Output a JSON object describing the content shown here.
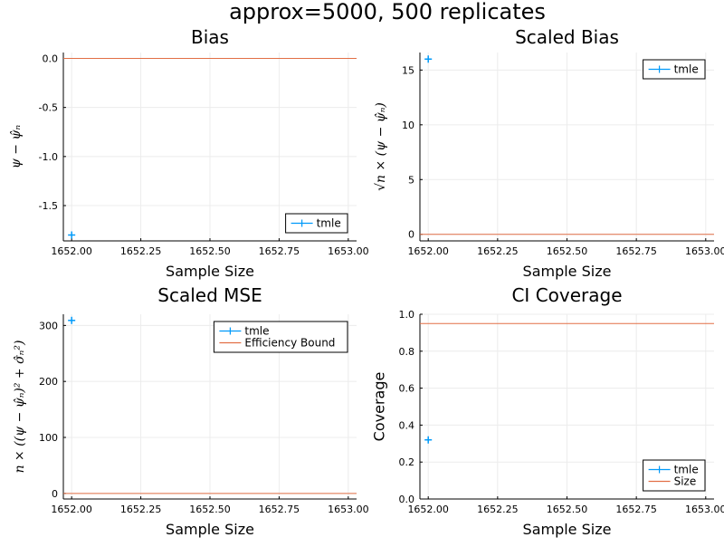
{
  "title": "approx=5000, 500 replicates",
  "colors": {
    "tmle": "#009AFA",
    "reference": "#E26F46"
  },
  "chart_data": [
    {
      "type": "scatter",
      "title": "Bias",
      "xlabel": "Sample Size",
      "ylabel": "ψ − ψ̂ₙ",
      "xlim": [
        1651.97,
        1653.03
      ],
      "ylim": [
        -1.86,
        0.06
      ],
      "xticks": [
        1652.0,
        1652.25,
        1652.5,
        1652.75,
        1653.0
      ],
      "xtick_labels": [
        "1652.00",
        "1652.25",
        "1652.50",
        "1652.75",
        "1653.00"
      ],
      "yticks": [
        0,
        -0.5,
        -1.0,
        -1.5
      ],
      "ytick_labels": [
        "0.0",
        "-0.5",
        "-1.0",
        "-1.5"
      ],
      "series": [
        {
          "name": "tmle",
          "marker": "+",
          "x": [
            1652
          ],
          "y": [
            -1.8
          ]
        }
      ],
      "hlines": [
        {
          "y": 0
        }
      ],
      "legend": "bottom-right"
    },
    {
      "type": "scatter",
      "title": "Scaled Bias",
      "xlabel": "Sample Size",
      "ylabel": "√n × (ψ − ψ̂ₙ)",
      "xlim": [
        1651.97,
        1653.03
      ],
      "ylim": [
        -0.6,
        16.6
      ],
      "xticks": [
        1652.0,
        1652.25,
        1652.5,
        1652.75,
        1653.0
      ],
      "xtick_labels": [
        "1652.00",
        "1652.25",
        "1652.50",
        "1652.75",
        "1653.00"
      ],
      "yticks": [
        0,
        5,
        10,
        15
      ],
      "ytick_labels": [
        "0",
        "5",
        "10",
        "15"
      ],
      "series": [
        {
          "name": "tmle",
          "marker": "+",
          "x": [
            1652
          ],
          "y": [
            16
          ]
        }
      ],
      "hlines": [
        {
          "y": 0
        }
      ],
      "legend": "top-right"
    },
    {
      "type": "scatter",
      "title": "Scaled MSE",
      "xlabel": "Sample Size",
      "ylabel": "n × ((ψ − ψ̂ₙ)² + σ̂ₙ²)",
      "xlim": [
        1651.97,
        1653.03
      ],
      "ylim": [
        -10,
        320
      ],
      "xticks": [
        1652.0,
        1652.25,
        1652.5,
        1652.75,
        1653.0
      ],
      "xtick_labels": [
        "1652.00",
        "1652.25",
        "1652.50",
        "1652.75",
        "1653.00"
      ],
      "yticks": [
        0,
        100,
        200,
        300
      ],
      "ytick_labels": [
        "0",
        "100",
        "200",
        "300"
      ],
      "series": [
        {
          "name": "tmle",
          "marker": "+",
          "x": [
            1652
          ],
          "y": [
            309
          ]
        }
      ],
      "hlines": [
        {
          "name": "Efficiency Bound",
          "y": 0
        }
      ],
      "legend": "top-right"
    },
    {
      "type": "scatter",
      "title": "CI Coverage",
      "xlabel": "Sample Size",
      "ylabel": "Coverage",
      "xlim": [
        1651.97,
        1653.03
      ],
      "ylim": [
        0,
        1
      ],
      "xticks": [
        1652.0,
        1652.25,
        1652.5,
        1652.75,
        1653.0
      ],
      "xtick_labels": [
        "1652.00",
        "1652.25",
        "1652.50",
        "1652.75",
        "1653.00"
      ],
      "yticks": [
        0,
        0.2,
        0.4,
        0.6,
        0.8,
        1.0
      ],
      "ytick_labels": [
        "0.0",
        "0.2",
        "0.4",
        "0.6",
        "0.8",
        "1.0"
      ],
      "series": [
        {
          "name": "tmle",
          "marker": "+",
          "x": [
            1652
          ],
          "y": [
            0.32
          ]
        }
      ],
      "hlines": [
        {
          "name": "Size",
          "y": 0.95
        }
      ],
      "legend": "bottom-right"
    }
  ]
}
